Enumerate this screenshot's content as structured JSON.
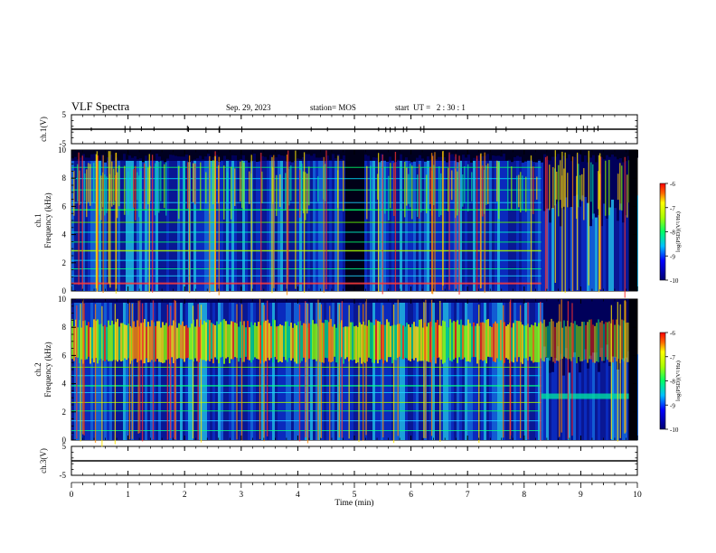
{
  "header": {
    "title": "VLF Spectra",
    "date": "Sep. 29, 2023",
    "station": "station= MOS",
    "start_ut": "start  UT =   2 : 30 : 1"
  },
  "colors": {
    "background": "#000000",
    "low": "#000080",
    "mid": "#00ff66",
    "high": "#ffff00",
    "peak": "#ff0000"
  },
  "chart_data": [
    {
      "type": "line",
      "name": "ch1-waveform",
      "ylabel": "ch.1(V)",
      "ylim": [
        -5,
        5
      ],
      "yticks": [
        "5",
        "-5"
      ],
      "x": [
        0,
        10
      ],
      "y": [
        0,
        0
      ]
    },
    {
      "type": "heatmap",
      "name": "ch1-spectrogram",
      "ylabel": "ch.1\nFrequency (kHz)",
      "xlim": [
        0,
        10
      ],
      "ylim": [
        0,
        10
      ],
      "yticks": [
        "0",
        "2",
        "4",
        "6",
        "8",
        "10"
      ],
      "colorbar": {
        "label": "log(PSD)(V²/Hz)",
        "range": [
          -10,
          -6
        ],
        "ticks": [
          "-6",
          "-7",
          "-8",
          "-9",
          "-10"
        ]
      },
      "notable": {
        "gap_min": [
          4.8,
          5.15
        ],
        "change_min": 8.3
      }
    },
    {
      "type": "heatmap",
      "name": "ch2-spectrogram",
      "ylabel": "ch.2\nFrequency (kHz)",
      "xlim": [
        0,
        10
      ],
      "ylim": [
        0,
        10
      ],
      "yticks": [
        "0",
        "2",
        "4",
        "6",
        "8",
        "10"
      ],
      "colorbar": {
        "label": "log(PSD)(V²/Hz)",
        "range": [
          -10,
          -6
        ],
        "ticks": [
          "-6",
          "-7",
          "-8",
          "-9",
          "-10"
        ]
      },
      "notable": {
        "band_khz": [
          5.5,
          8.5
        ],
        "change_min": 8.3
      }
    },
    {
      "type": "line",
      "name": "ch3-waveform",
      "ylabel": "ch.3(V)",
      "ylim": [
        -5,
        5
      ],
      "yticks": [
        "5",
        "-5"
      ],
      "x": [
        0,
        10
      ],
      "y": [
        0,
        0
      ]
    }
  ],
  "axes": {
    "xlabel": "Time  (min)",
    "xticks": [
      "0",
      "1",
      "2",
      "3",
      "4",
      "5",
      "6",
      "7",
      "8",
      "9",
      "10"
    ]
  }
}
